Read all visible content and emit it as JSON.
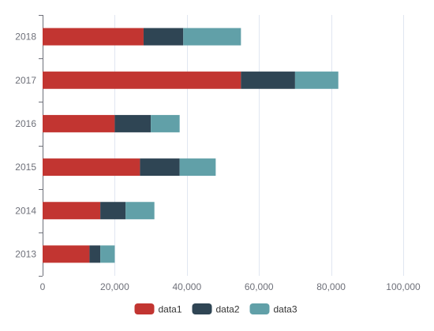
{
  "chart_data": {
    "type": "bar",
    "orientation": "horizontal",
    "stacked": true,
    "title": "",
    "xlabel": "",
    "ylabel": "",
    "categories": [
      "2013",
      "2014",
      "2015",
      "2016",
      "2017",
      "2018"
    ],
    "series": [
      {
        "name": "data1",
        "color": "#c23531",
        "values": [
          13000,
          16000,
          27000,
          20000,
          55000,
          28000
        ]
      },
      {
        "name": "data2",
        "color": "#2f4554",
        "values": [
          3000,
          7000,
          11000,
          10000,
          15000,
          11000
        ]
      },
      {
        "name": "data3",
        "color": "#61a0a8",
        "values": [
          4000,
          8000,
          10000,
          8000,
          12000,
          16000
        ]
      }
    ],
    "xlim": [
      0,
      100000
    ],
    "x_ticks": [
      0,
      20000,
      40000,
      60000,
      80000,
      100000
    ],
    "x_tick_labels": [
      "0",
      "20,000",
      "40,000",
      "60,000",
      "80,000",
      "100,000"
    ],
    "grid": "vertical",
    "legend_position": "bottom-center"
  }
}
